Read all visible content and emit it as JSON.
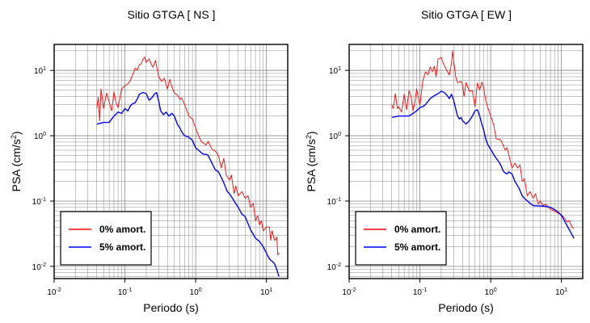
{
  "chart_data": [
    {
      "type": "line",
      "title": "Sitio GTGA [ NS ]",
      "xlabel": "Periodo (s)",
      "ylabel": "PSA (cm/s2)",
      "x_scale": "log",
      "y_scale": "log",
      "xlim": [
        0.01,
        20
      ],
      "ylim": [
        0.0065,
        25
      ],
      "x_ticks": [
        "10-2",
        "10-1",
        "100",
        "101"
      ],
      "y_ticks": [
        "10-2",
        "10-1",
        "100",
        "101"
      ],
      "grid": true,
      "legend_position": "bottom-left",
      "series": [
        {
          "name": "0% amort.",
          "color": "#ff0000",
          "points": [
            [
              0.04,
              2.6
            ],
            [
              0.042,
              3.9
            ],
            [
              0.044,
              1.7
            ],
            [
              0.046,
              5.2
            ],
            [
              0.05,
              2.6
            ],
            [
              0.055,
              4.5
            ],
            [
              0.06,
              3.3
            ],
            [
              0.065,
              2.4
            ],
            [
              0.07,
              4.7
            ],
            [
              0.075,
              3.2
            ],
            [
              0.08,
              2.7
            ],
            [
              0.09,
              5.2
            ],
            [
              0.1,
              5.8
            ],
            [
              0.11,
              6.2
            ],
            [
              0.12,
              7.1
            ],
            [
              0.13,
              8.8
            ],
            [
              0.14,
              10.8
            ],
            [
              0.15,
              10.2
            ],
            [
              0.16,
              12.2
            ],
            [
              0.17,
              12.6
            ],
            [
              0.18,
              14.8
            ],
            [
              0.19,
              16.0
            ],
            [
              0.2,
              13.2
            ],
            [
              0.22,
              15.0
            ],
            [
              0.24,
              12.0
            ],
            [
              0.25,
              11.2
            ],
            [
              0.27,
              14.2
            ],
            [
              0.29,
              9.8
            ],
            [
              0.3,
              8.0
            ],
            [
              0.33,
              6.8
            ],
            [
              0.36,
              7.6
            ],
            [
              0.39,
              5.6
            ],
            [
              0.4,
              5.2
            ],
            [
              0.43,
              7.3
            ],
            [
              0.46,
              5.6
            ],
            [
              0.5,
              4.5
            ],
            [
              0.55,
              4.2
            ],
            [
              0.6,
              3.6
            ],
            [
              0.63,
              3.8
            ],
            [
              0.7,
              3.0
            ],
            [
              0.8,
              2.0
            ],
            [
              0.9,
              1.8
            ],
            [
              1.0,
              1.3
            ],
            [
              1.1,
              1.0
            ],
            [
              1.2,
              0.82
            ],
            [
              1.4,
              0.72
            ],
            [
              1.5,
              0.82
            ],
            [
              1.7,
              0.62
            ],
            [
              1.9,
              0.58
            ],
            [
              2.1,
              0.5
            ],
            [
              2.3,
              0.32
            ],
            [
              2.5,
              0.45
            ],
            [
              2.7,
              0.25
            ],
            [
              3.0,
              0.21
            ],
            [
              3.2,
              0.25
            ],
            [
              3.5,
              0.13
            ],
            [
              3.7,
              0.17
            ],
            [
              4.0,
              0.12
            ],
            [
              4.5,
              0.14
            ],
            [
              5.0,
              0.11
            ],
            [
              5.5,
              0.12
            ],
            [
              6.0,
              0.08
            ],
            [
              6.5,
              0.093
            ],
            [
              7.0,
              0.05
            ],
            [
              7.5,
              0.06
            ],
            [
              8.0,
              0.043
            ],
            [
              8.5,
              0.05
            ],
            [
              9.0,
              0.035
            ],
            [
              10.0,
              0.04
            ],
            [
              11.0,
              0.04
            ],
            [
              11.5,
              0.025
            ],
            [
              12.0,
              0.035
            ],
            [
              13.0,
              0.025
            ],
            [
              14.0,
              0.028
            ],
            [
              14.5,
              0.015
            ],
            [
              15.0,
              0.016
            ]
          ]
        },
        {
          "name": "5% amort.",
          "color": "#0000ff",
          "points": [
            [
              0.04,
              1.5
            ],
            [
              0.05,
              1.6
            ],
            [
              0.06,
              1.6
            ],
            [
              0.07,
              2.0
            ],
            [
              0.08,
              2.3
            ],
            [
              0.09,
              2.2
            ],
            [
              0.1,
              2.6
            ],
            [
              0.11,
              2.4
            ],
            [
              0.12,
              2.9
            ],
            [
              0.13,
              3.1
            ],
            [
              0.14,
              3.2
            ],
            [
              0.15,
              3.7
            ],
            [
              0.16,
              4.3
            ],
            [
              0.18,
              4.6
            ],
            [
              0.2,
              4.4
            ],
            [
              0.22,
              3.5
            ],
            [
              0.24,
              3.8
            ],
            [
              0.26,
              4.3
            ],
            [
              0.28,
              4.6
            ],
            [
              0.3,
              3.4
            ],
            [
              0.32,
              2.4
            ],
            [
              0.35,
              2.1
            ],
            [
              0.38,
              2.3
            ],
            [
              0.42,
              2.0
            ],
            [
              0.46,
              2.2
            ],
            [
              0.5,
              2.0
            ],
            [
              0.55,
              1.5
            ],
            [
              0.6,
              1.3
            ],
            [
              0.65,
              1.1
            ],
            [
              0.7,
              1.0
            ],
            [
              0.8,
              0.95
            ],
            [
              0.9,
              0.85
            ],
            [
              1.0,
              0.65
            ],
            [
              1.1,
              0.6
            ],
            [
              1.2,
              0.55
            ],
            [
              1.3,
              0.52
            ],
            [
              1.4,
              0.52
            ],
            [
              1.5,
              0.5
            ],
            [
              1.7,
              0.38
            ],
            [
              1.9,
              0.3
            ],
            [
              2.1,
              0.28
            ],
            [
              2.3,
              0.23
            ],
            [
              2.5,
              0.19
            ],
            [
              2.8,
              0.14
            ],
            [
              3.0,
              0.13
            ],
            [
              3.5,
              0.1
            ],
            [
              4.0,
              0.08
            ],
            [
              4.5,
              0.063
            ],
            [
              5.0,
              0.058
            ],
            [
              5.5,
              0.045
            ],
            [
              6.0,
              0.036
            ],
            [
              7.0,
              0.027
            ],
            [
              8.0,
              0.024
            ],
            [
              9.0,
              0.02
            ],
            [
              10.0,
              0.016
            ],
            [
              11.0,
              0.013
            ],
            [
              12.0,
              0.012
            ],
            [
              13.0,
              0.011
            ],
            [
              14.0,
              0.009
            ],
            [
              15.0,
              0.007
            ]
          ]
        }
      ]
    },
    {
      "type": "line",
      "title": "Sitio GTGA [ EW ]",
      "xlabel": "Periodo (s)",
      "ylabel": "PSA (cm/s2)",
      "x_scale": "log",
      "y_scale": "log",
      "xlim": [
        0.01,
        20
      ],
      "ylim": [
        0.0065,
        25
      ],
      "x_ticks": [
        "10-2",
        "10-1",
        "100",
        "101"
      ],
      "y_ticks": [
        "10-2",
        "10-1",
        "100",
        "101"
      ],
      "grid": true,
      "legend_position": "bottom-left",
      "series": [
        {
          "name": "0% amort.",
          "color": "#ff0000",
          "points": [
            [
              0.04,
              3.0
            ],
            [
              0.042,
              2.6
            ],
            [
              0.045,
              4.4
            ],
            [
              0.048,
              2.6
            ],
            [
              0.05,
              2.8
            ],
            [
              0.055,
              2.3
            ],
            [
              0.06,
              4.3
            ],
            [
              0.065,
              2.5
            ],
            [
              0.07,
              4.9
            ],
            [
              0.075,
              4.0
            ],
            [
              0.08,
              2.4
            ],
            [
              0.085,
              3.3
            ],
            [
              0.09,
              5.2
            ],
            [
              0.1,
              2.9
            ],
            [
              0.11,
              7.0
            ],
            [
              0.12,
              9.5
            ],
            [
              0.13,
              8.6
            ],
            [
              0.14,
              11.3
            ],
            [
              0.15,
              9.6
            ],
            [
              0.16,
              11.6
            ],
            [
              0.17,
              8.0
            ],
            [
              0.18,
              14.8
            ],
            [
              0.2,
              15.8
            ],
            [
              0.22,
              12.0
            ],
            [
              0.24,
              10.0
            ],
            [
              0.26,
              8.5
            ],
            [
              0.28,
              13.0
            ],
            [
              0.29,
              20.0
            ],
            [
              0.3,
              14.2
            ],
            [
              0.32,
              8.0
            ],
            [
              0.34,
              6.5
            ],
            [
              0.36,
              6.6
            ],
            [
              0.38,
              6.8
            ],
            [
              0.4,
              6.0
            ],
            [
              0.42,
              4.0
            ],
            [
              0.45,
              6.5
            ],
            [
              0.5,
              4.8
            ],
            [
              0.55,
              4.9
            ],
            [
              0.6,
              2.8
            ],
            [
              0.65,
              6.4
            ],
            [
              0.7,
              5.0
            ],
            [
              0.75,
              6.6
            ],
            [
              0.8,
              5.3
            ],
            [
              0.85,
              3.5
            ],
            [
              0.9,
              2.8
            ],
            [
              1.0,
              2.0
            ],
            [
              1.1,
              1.5
            ],
            [
              1.2,
              0.9
            ],
            [
              1.3,
              0.88
            ],
            [
              1.4,
              0.85
            ],
            [
              1.5,
              0.72
            ],
            [
              1.6,
              0.6
            ],
            [
              1.7,
              0.66
            ],
            [
              1.8,
              0.52
            ],
            [
              2.0,
              0.32
            ],
            [
              2.2,
              0.38
            ],
            [
              2.4,
              0.32
            ],
            [
              2.6,
              0.36
            ],
            [
              2.8,
              0.2
            ],
            [
              3.0,
              0.22
            ],
            [
              3.3,
              0.12
            ],
            [
              3.6,
              0.14
            ],
            [
              4.0,
              0.11
            ],
            [
              4.3,
              0.13
            ],
            [
              4.7,
              0.09
            ],
            [
              5.0,
              0.1
            ],
            [
              5.5,
              0.085
            ],
            [
              6.0,
              0.09
            ],
            [
              6.5,
              0.08
            ],
            [
              7.0,
              0.075
            ],
            [
              8.0,
              0.07
            ],
            [
              9.0,
              0.065
            ],
            [
              10.0,
              0.062
            ],
            [
              11.0,
              0.055
            ],
            [
              12.0,
              0.048
            ],
            [
              13.0,
              0.05
            ],
            [
              14.0,
              0.04
            ],
            [
              15.0,
              0.038
            ]
          ]
        },
        {
          "name": "5% amort.",
          "color": "#0000ff",
          "points": [
            [
              0.04,
              1.9
            ],
            [
              0.05,
              2.0
            ],
            [
              0.06,
              2.0
            ],
            [
              0.07,
              2.0
            ],
            [
              0.08,
              2.2
            ],
            [
              0.09,
              2.4
            ],
            [
              0.1,
              2.7
            ],
            [
              0.11,
              2.8
            ],
            [
              0.12,
              3.0
            ],
            [
              0.14,
              3.7
            ],
            [
              0.16,
              4.1
            ],
            [
              0.18,
              4.4
            ],
            [
              0.2,
              4.8
            ],
            [
              0.22,
              4.6
            ],
            [
              0.24,
              4.2
            ],
            [
              0.26,
              3.7
            ],
            [
              0.28,
              4.3
            ],
            [
              0.3,
              3.5
            ],
            [
              0.32,
              2.6
            ],
            [
              0.34,
              2.0
            ],
            [
              0.36,
              1.8
            ],
            [
              0.38,
              1.9
            ],
            [
              0.4,
              1.7
            ],
            [
              0.45,
              1.5
            ],
            [
              0.5,
              1.7
            ],
            [
              0.55,
              2.0
            ],
            [
              0.6,
              2.4
            ],
            [
              0.65,
              2.5
            ],
            [
              0.7,
              2.0
            ],
            [
              0.75,
              1.5
            ],
            [
              0.8,
              1.2
            ],
            [
              0.85,
              0.9
            ],
            [
              0.9,
              0.75
            ],
            [
              1.0,
              0.62
            ],
            [
              1.1,
              0.52
            ],
            [
              1.2,
              0.45
            ],
            [
              1.3,
              0.4
            ],
            [
              1.4,
              0.35
            ],
            [
              1.5,
              0.29
            ],
            [
              1.6,
              0.27
            ],
            [
              1.7,
              0.26
            ],
            [
              1.8,
              0.28
            ],
            [
              2.0,
              0.26
            ],
            [
              2.2,
              0.2
            ],
            [
              2.5,
              0.16
            ],
            [
              2.8,
              0.12
            ],
            [
              3.0,
              0.11
            ],
            [
              3.5,
              0.095
            ],
            [
              4.0,
              0.085
            ],
            [
              5.0,
              0.084
            ],
            [
              6.0,
              0.083
            ],
            [
              7.0,
              0.08
            ],
            [
              8.0,
              0.074
            ],
            [
              9.0,
              0.068
            ],
            [
              10.0,
              0.06
            ],
            [
              11.0,
              0.05
            ],
            [
              12.0,
              0.042
            ],
            [
              13.0,
              0.036
            ],
            [
              14.0,
              0.031
            ],
            [
              15.0,
              0.027
            ]
          ]
        }
      ]
    }
  ]
}
